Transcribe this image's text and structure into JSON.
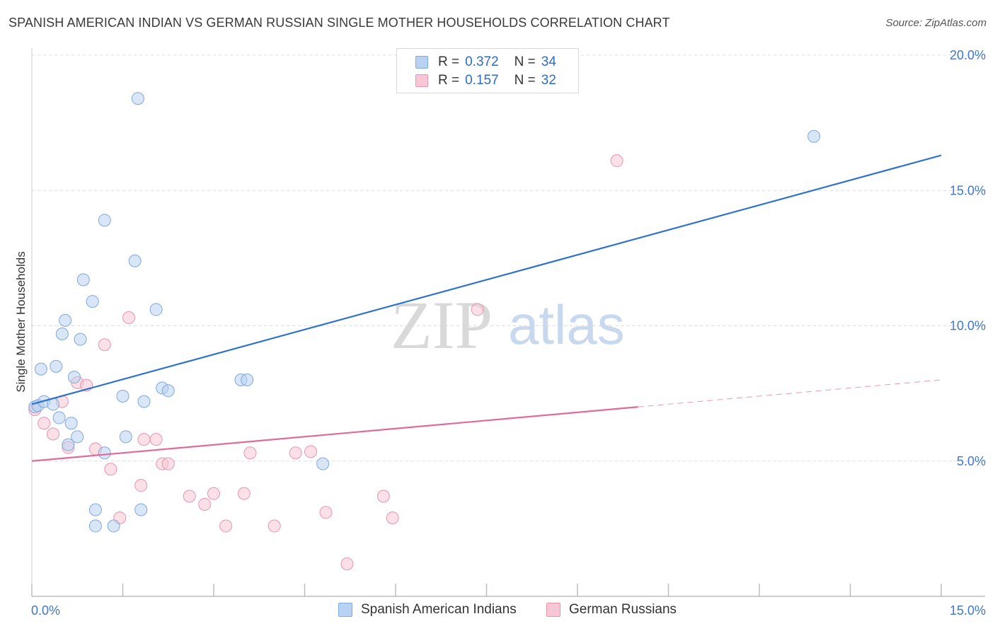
{
  "header": {
    "title": "SPANISH AMERICAN INDIAN VS GERMAN RUSSIAN SINGLE MOTHER HOUSEHOLDS CORRELATION CHART",
    "source": "Source: ZipAtlas.com"
  },
  "watermark": {
    "part1": "ZIP",
    "part2": "atlas"
  },
  "legend": {
    "rows": [
      {
        "r_label": "R =",
        "r_value": "0.372",
        "n_label": "N =",
        "n_value": "34"
      },
      {
        "r_label": "R =",
        "r_value": "0.157",
        "n_label": "N =",
        "n_value": "32"
      }
    ]
  },
  "colors": {
    "blue_fill": "#b8d2f3",
    "blue_stroke": "#7fa8dc",
    "blue_line": "#2f72c9",
    "pink_fill": "#f8c6d5",
    "pink_stroke": "#e595b0",
    "pink_line": "#e06b98",
    "axis_text": "#3f77c9"
  },
  "chart_data": {
    "type": "scatter",
    "title": "SPANISH AMERICAN INDIAN VS GERMAN RUSSIAN SINGLE MOTHER HOUSEHOLDS CORRELATION CHART",
    "xlabel": "",
    "ylabel": "Single Mother Households",
    "xlim": [
      0,
      15
    ],
    "ylim": [
      0,
      20
    ],
    "x_tick_labels": [
      "0.0%",
      "15.0%"
    ],
    "y_ticks": [
      5,
      10,
      15,
      20
    ],
    "y_tick_labels": [
      "5.0%",
      "10.0%",
      "15.0%",
      "20.0%"
    ],
    "grid": true,
    "legend_position": "top-center",
    "series": [
      {
        "name": "Spanish American Indians",
        "color": "#b8d2f3",
        "r": 0.372,
        "n": 34,
        "trend": {
          "x": [
            0,
            15
          ],
          "y": [
            7.1,
            16.3
          ],
          "dashed_from": null
        },
        "points": [
          [
            0.05,
            7.0
          ],
          [
            0.1,
            7.05
          ],
          [
            0.15,
            8.4
          ],
          [
            0.2,
            7.2
          ],
          [
            0.35,
            7.1
          ],
          [
            0.4,
            8.5
          ],
          [
            0.45,
            6.6
          ],
          [
            0.5,
            9.7
          ],
          [
            0.55,
            10.2
          ],
          [
            0.6,
            5.6
          ],
          [
            0.65,
            6.4
          ],
          [
            0.7,
            8.1
          ],
          [
            0.75,
            5.9
          ],
          [
            0.8,
            9.5
          ],
          [
            0.85,
            11.7
          ],
          [
            1.0,
            10.9
          ],
          [
            1.05,
            3.2
          ],
          [
            1.05,
            2.6
          ],
          [
            1.2,
            13.9
          ],
          [
            1.2,
            5.3
          ],
          [
            1.35,
            2.6
          ],
          [
            1.5,
            7.4
          ],
          [
            1.55,
            5.9
          ],
          [
            1.7,
            12.4
          ],
          [
            1.75,
            18.4
          ],
          [
            1.8,
            3.2
          ],
          [
            1.85,
            7.2
          ],
          [
            2.05,
            10.6
          ],
          [
            2.15,
            7.7
          ],
          [
            2.25,
            7.6
          ],
          [
            3.45,
            8.0
          ],
          [
            3.55,
            8.0
          ],
          [
            4.8,
            4.9
          ],
          [
            12.9,
            17.0
          ]
        ]
      },
      {
        "name": "German Russians",
        "color": "#f8c6d5",
        "r": 0.157,
        "n": 32,
        "trend": {
          "x": [
            0,
            15
          ],
          "y": [
            5.0,
            8.0
          ],
          "dashed_from": 10.0
        },
        "points": [
          [
            0.05,
            6.9
          ],
          [
            0.2,
            6.4
          ],
          [
            0.35,
            6.0
          ],
          [
            0.5,
            7.2
          ],
          [
            0.6,
            5.5
          ],
          [
            0.75,
            7.9
          ],
          [
            0.9,
            7.8
          ],
          [
            1.05,
            5.45
          ],
          [
            1.2,
            9.3
          ],
          [
            1.3,
            4.7
          ],
          [
            1.45,
            2.9
          ],
          [
            1.6,
            10.3
          ],
          [
            1.8,
            4.1
          ],
          [
            1.85,
            5.8
          ],
          [
            2.05,
            5.8
          ],
          [
            2.15,
            4.9
          ],
          [
            2.25,
            4.9
          ],
          [
            2.6,
            3.7
          ],
          [
            2.85,
            3.4
          ],
          [
            3.0,
            3.8
          ],
          [
            3.2,
            2.6
          ],
          [
            3.5,
            3.8
          ],
          [
            3.6,
            5.3
          ],
          [
            4.0,
            2.6
          ],
          [
            4.35,
            5.3
          ],
          [
            4.6,
            5.35
          ],
          [
            4.85,
            3.1
          ],
          [
            5.2,
            1.2
          ],
          [
            5.8,
            3.7
          ],
          [
            5.95,
            2.9
          ],
          [
            7.35,
            10.6
          ],
          [
            9.65,
            16.1
          ]
        ]
      }
    ]
  }
}
